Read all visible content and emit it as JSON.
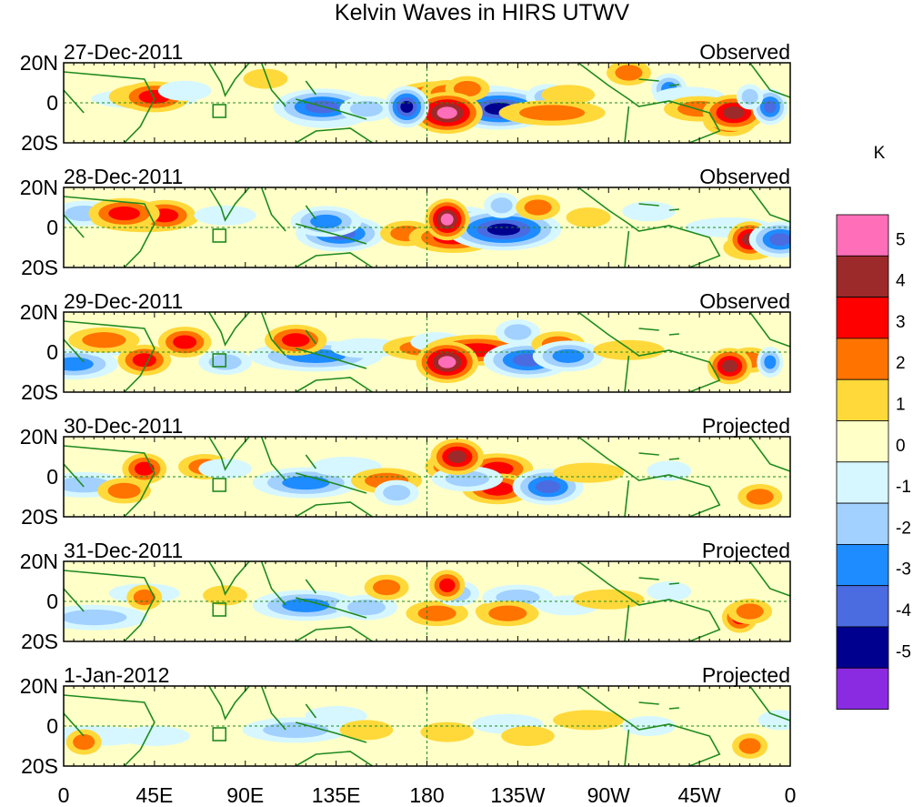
{
  "chart_data": {
    "type": "heatmap",
    "title": "Kelvin Waves in HIRS UTWV",
    "x_ticks": [
      "0",
      "45E",
      "90E",
      "135E",
      "180",
      "135W",
      "90W",
      "45W",
      "0"
    ],
    "y_ticks": [
      "20N",
      "0",
      "20S"
    ],
    "panels": [
      {
        "date": "27-Dec-2011",
        "status": "Observed",
        "cells": [
          [
            -1,
            "40E",
            12,
            2
          ],
          [
            2,
            "40E",
            8,
            3
          ],
          [
            3,
            "45E",
            8,
            3
          ],
          [
            -3,
            "130E",
            10,
            -5
          ],
          [
            -4,
            "128E",
            11,
            -2
          ],
          [
            1,
            "100E",
            5,
            12
          ],
          [
            -2,
            "150E",
            6,
            -3
          ],
          [
            3,
            "175W",
            10,
            3
          ],
          [
            2,
            "170W",
            6,
            5
          ],
          [
            -3,
            "150W",
            10,
            1
          ],
          [
            -5,
            "144W",
            12,
            -3
          ],
          [
            2,
            "160W",
            5,
            7
          ],
          [
            -2,
            "120W",
            5,
            3
          ],
          [
            2,
            "118W",
            12,
            -5
          ],
          [
            1,
            "110W",
            6,
            4
          ],
          [
            2,
            "80W",
            5,
            15
          ],
          [
            -3,
            "60W",
            4,
            7
          ],
          [
            -1,
            "50W",
            8,
            3
          ],
          [
            2,
            "45W",
            8,
            -3
          ],
          [
            3,
            "30W",
            6,
            -9
          ],
          [
            4,
            "28W",
            7,
            -5
          ],
          [
            -4,
            "10W",
            4,
            -2
          ],
          [
            -2,
            "20W",
            3,
            3
          ],
          [
            5,
            "170W",
            8,
            -5
          ],
          [
            -5,
            "170E",
            5,
            -2
          ],
          [
            -1,
            "60E",
            6,
            6
          ]
        ]
      },
      {
        "date": "28-Dec-2011",
        "status": "Observed",
        "cells": [
          [
            -2,
            "10E",
            7,
            7
          ],
          [
            2,
            "40E",
            12,
            4
          ],
          [
            3,
            "50E",
            7,
            6
          ],
          [
            -1,
            "80E",
            7,
            6
          ],
          [
            -4,
            "137E",
            10,
            -3
          ],
          [
            -3,
            "130E",
            8,
            3
          ],
          [
            2,
            "170E",
            6,
            -3
          ],
          [
            3,
            "167W",
            10,
            -5
          ],
          [
            -2,
            "160W",
            6,
            4
          ],
          [
            -5,
            "142W",
            13,
            -1
          ],
          [
            -2,
            "143W",
            4,
            11
          ],
          [
            2,
            "125W",
            5,
            10
          ],
          [
            1,
            "100W",
            5,
            5
          ],
          [
            -1,
            "30W",
            10,
            0
          ],
          [
            2,
            "20W",
            6,
            -10
          ],
          [
            4,
            "20W",
            5,
            -6
          ],
          [
            -4,
            "5W",
            7,
            -6
          ],
          [
            5,
            "170W",
            5,
            4
          ],
          [
            -1,
            "70W",
            6,
            8
          ],
          [
            3,
            "30E",
            8,
            7
          ]
        ]
      },
      {
        "date": "29-Dec-2011",
        "status": "Observed",
        "cells": [
          [
            -3,
            "5E",
            10,
            -6
          ],
          [
            -2,
            "20E",
            6,
            4
          ],
          [
            2,
            "20E",
            8,
            6
          ],
          [
            3,
            "40E",
            6,
            -4
          ],
          [
            3,
            "60E",
            6,
            5
          ],
          [
            -3,
            "125E",
            15,
            -2
          ],
          [
            -1,
            "150E",
            8,
            2
          ],
          [
            2,
            "180",
            10,
            2
          ],
          [
            -1,
            "175W",
            6,
            5
          ],
          [
            3,
            "155W",
            12,
            1
          ],
          [
            -4,
            "130W",
            10,
            -4
          ],
          [
            -2,
            "135W",
            5,
            10
          ],
          [
            2,
            "115W",
            6,
            4
          ],
          [
            -3,
            "110W",
            8,
            -2
          ],
          [
            1,
            "80W",
            8,
            1
          ],
          [
            2,
            "20W",
            5,
            -4
          ],
          [
            -3,
            "10W",
            3,
            -5
          ],
          [
            4,
            "30W",
            5,
            -7
          ],
          [
            5,
            "170W",
            7,
            -5
          ],
          [
            -2,
            "80E",
            6,
            -5
          ],
          [
            3,
            "115E",
            7,
            6
          ]
        ]
      },
      {
        "date": "30-Dec-2011",
        "status": "Projected",
        "cells": [
          [
            -2,
            "10E",
            10,
            -4
          ],
          [
            2,
            "30E",
            6,
            -7
          ],
          [
            3,
            "40E",
            5,
            4
          ],
          [
            2,
            "70E",
            6,
            5
          ],
          [
            -3,
            "120E",
            12,
            -3
          ],
          [
            -1,
            "140E",
            8,
            5
          ],
          [
            2,
            "160E",
            8,
            -2
          ],
          [
            2,
            "170W",
            5,
            5
          ],
          [
            3,
            "145W",
            8,
            4
          ],
          [
            3,
            "145W",
            8,
            -6
          ],
          [
            -4,
            "120W",
            8,
            -5
          ],
          [
            -2,
            "160W",
            8,
            -1
          ],
          [
            1,
            "100W",
            8,
            2
          ],
          [
            2,
            "15W",
            5,
            -10
          ],
          [
            -1,
            "60W",
            5,
            3
          ],
          [
            4,
            "165W",
            6,
            10
          ],
          [
            -2,
            "165E",
            5,
            -8
          ],
          [
            -1,
            "80E",
            6,
            4
          ]
        ]
      },
      {
        "date": "31-Dec-2011",
        "status": "Projected",
        "cells": [
          [
            -2,
            "15E",
            12,
            -8
          ],
          [
            -1,
            "40E",
            8,
            4
          ],
          [
            2,
            "40E",
            4,
            2
          ],
          [
            1,
            "80E",
            5,
            3
          ],
          [
            -3,
            "120E",
            12,
            -2
          ],
          [
            -2,
            "150E",
            7,
            -3
          ],
          [
            2,
            "160E",
            5,
            7
          ],
          [
            2,
            "175W",
            7,
            -6
          ],
          [
            -2,
            "165W",
            5,
            4
          ],
          [
            1,
            "145W",
            5,
            -5
          ],
          [
            -2,
            "135W",
            8,
            2
          ],
          [
            2,
            "140W",
            7,
            -6
          ],
          [
            -1,
            "110W",
            7,
            -2
          ],
          [
            1,
            "90W",
            8,
            1
          ],
          [
            3,
            "25W",
            4,
            -8
          ],
          [
            -1,
            "60W",
            5,
            5
          ],
          [
            2,
            "20W",
            5,
            -5
          ],
          [
            3,
            "170W",
            4,
            8
          ]
        ]
      },
      {
        "date": "1-Jan-2012",
        "status": "Projected",
        "cells": [
          [
            -1,
            "15E",
            12,
            -5
          ],
          [
            2,
            "10E",
            4,
            -8
          ],
          [
            -1,
            "45E",
            8,
            -5
          ],
          [
            -2,
            "115E",
            12,
            -2
          ],
          [
            -1,
            "135E",
            7,
            5
          ],
          [
            1,
            "150E",
            6,
            -2
          ],
          [
            1,
            "170W",
            6,
            -3
          ],
          [
            -1,
            "140W",
            8,
            1
          ],
          [
            1,
            "130W",
            6,
            -5
          ],
          [
            1,
            "100W",
            8,
            3
          ],
          [
            -1,
            "70W",
            6,
            0
          ],
          [
            2,
            "20W",
            4,
            -10
          ],
          [
            -1,
            "5W",
            5,
            3
          ]
        ]
      }
    ],
    "colorbar": {
      "title": "K",
      "levels": [
        "5",
        "4",
        "3",
        "2",
        "1",
        "0",
        "-1",
        "-2",
        "-3",
        "-4",
        "-5"
      ],
      "colors": [
        "#ff6eb9",
        "#9c2a2a",
        "#ff0000",
        "#ff7300",
        "#ffd93a",
        "#ffffc8",
        "#d6f7ff",
        "#a2d1ff",
        "#1e8cff",
        "#4b6be1",
        "#00008f",
        "#8a2be2"
      ]
    }
  }
}
